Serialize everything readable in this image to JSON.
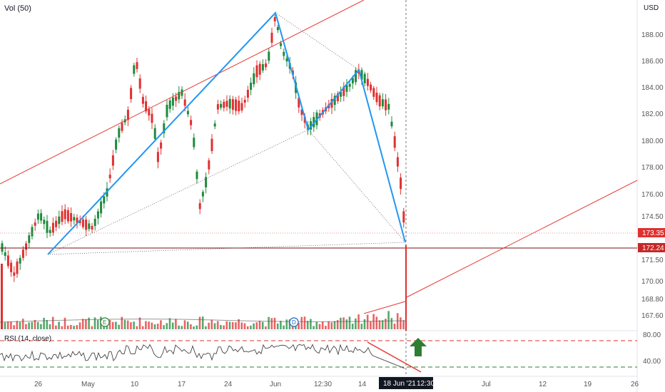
{
  "header": {
    "vol_label": "Vol (50)",
    "currency": "USD",
    "rsi_label": "RSI (14, close)"
  },
  "price_axis": {
    "ticks": [
      "188.00",
      "186.00",
      "184.00",
      "182.00",
      "180.00",
      "178.00",
      "176.00",
      "174.50",
      "171.50",
      "170.00",
      "168.80",
      "167.60"
    ],
    "tags": [
      {
        "value": "173.35",
        "color": "#e03030"
      },
      {
        "value": "172.24",
        "color": "#e03030"
      }
    ]
  },
  "rsi_axis": {
    "ticks": [
      "80.00",
      "40.00"
    ]
  },
  "time_axis": {
    "ticks": [
      "26",
      "May",
      "10",
      "17",
      "24",
      "Jun",
      "12:30",
      "14",
      "Jul",
      "12",
      "19",
      "26"
    ],
    "cursor_date": "18 Jun '21",
    "cursor_time": "12:30"
  },
  "event_badges": [
    {
      "letter": "E",
      "kind": "earnings"
    },
    {
      "letter": "D",
      "kind": "dividend"
    }
  ],
  "colors": {
    "up": "#1e8a3c",
    "down": "#e03030",
    "pattern": "#2196f3",
    "trend": "#e53935",
    "arrow": "#2e7d32"
  },
  "icons": {
    "arrow": "arrow-up-icon"
  }
}
